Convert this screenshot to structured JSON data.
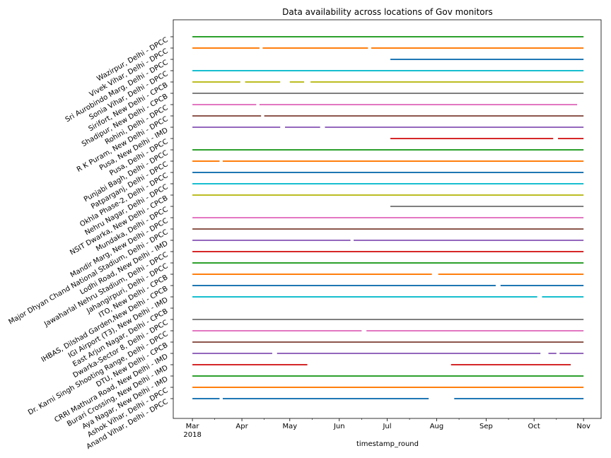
{
  "chart_data": {
    "type": "scatter",
    "title": "Data availability across locations of Gov monitors",
    "xlabel": "timestamp_round",
    "ylabel": "",
    "x_ticks": [
      {
        "date": "2018-03-01",
        "label": "Mar",
        "sublabel": "2018"
      },
      {
        "date": "2018-04-01",
        "label": "Apr",
        "sublabel": ""
      },
      {
        "date": "2018-05-01",
        "label": "May",
        "sublabel": ""
      },
      {
        "date": "2018-06-01",
        "label": "Jun",
        "sublabel": ""
      },
      {
        "date": "2018-07-01",
        "label": "Jul",
        "sublabel": ""
      },
      {
        "date": "2018-08-01",
        "label": "Aug",
        "sublabel": ""
      },
      {
        "date": "2018-09-01",
        "label": "Sep",
        "sublabel": ""
      },
      {
        "date": "2018-10-01",
        "label": "Oct",
        "sublabel": ""
      },
      {
        "date": "2018-11-01",
        "label": "Nov",
        "sublabel": ""
      }
    ],
    "xlim": [
      "2018-02-17",
      "2018-11-12"
    ],
    "grid": false,
    "series": [
      {
        "name": "Wazirpur, Delhi - DPCC",
        "color": "#2ca02c",
        "segments": [
          [
            "2018-03-01",
            "2018-11-01"
          ]
        ]
      },
      {
        "name": "Vivek Vihar, Delhi - DPCC",
        "color": "#ff7f0e",
        "segments": [
          [
            "2018-03-01",
            "2018-04-12"
          ],
          [
            "2018-04-14",
            "2018-06-19"
          ],
          [
            "2018-06-21",
            "2018-11-01"
          ]
        ]
      },
      {
        "name": "Sri Aurobindo Marg, Delhi - DPCC",
        "color": "#1f77b4",
        "segments": [
          [
            "2018-07-03",
            "2018-11-01"
          ]
        ]
      },
      {
        "name": "Sonia Vihar, Delhi - DPCC",
        "color": "#17becf",
        "segments": [
          [
            "2018-03-01",
            "2018-11-01"
          ]
        ]
      },
      {
        "name": "Sirifort, New Delhi - CPCB",
        "color": "#bcbd22",
        "segments": [
          [
            "2018-03-01",
            "2018-03-31"
          ],
          [
            "2018-04-03",
            "2018-04-25"
          ],
          [
            "2018-05-01",
            "2018-05-10"
          ],
          [
            "2018-05-14",
            "2018-11-01"
          ]
        ]
      },
      {
        "name": "Shadipur, New Delhi - CPCB",
        "color": "#7f7f7f",
        "segments": [
          [
            "2018-03-01",
            "2018-11-01"
          ]
        ]
      },
      {
        "name": "Rohini, Delhi - DPCC",
        "color": "#e377c2",
        "segments": [
          [
            "2018-03-01",
            "2018-04-10"
          ],
          [
            "2018-04-12",
            "2018-10-28"
          ]
        ]
      },
      {
        "name": "R K Puram, New Delhi - DPCC",
        "color": "#8c564b",
        "segments": [
          [
            "2018-03-01",
            "2018-04-13"
          ],
          [
            "2018-04-15",
            "2018-11-01"
          ]
        ]
      },
      {
        "name": "Pusa, New Delhi - IMD",
        "color": "#9467bd",
        "segments": [
          [
            "2018-03-01",
            "2018-04-25"
          ],
          [
            "2018-04-28",
            "2018-05-20"
          ],
          [
            "2018-05-23",
            "2018-11-01"
          ]
        ]
      },
      {
        "name": "Pusa, Delhi - DPCC",
        "color": "#d62728",
        "segments": [
          [
            "2018-07-03",
            "2018-10-13"
          ],
          [
            "2018-10-16",
            "2018-11-01"
          ]
        ]
      },
      {
        "name": "Punjabi Bagh, Delhi - DPCC",
        "color": "#2ca02c",
        "segments": [
          [
            "2018-03-01",
            "2018-11-01"
          ]
        ]
      },
      {
        "name": "Patparganj, Delhi - DPCC",
        "color": "#ff7f0e",
        "segments": [
          [
            "2018-03-01",
            "2018-03-18"
          ],
          [
            "2018-03-20",
            "2018-11-01"
          ]
        ]
      },
      {
        "name": "Okhla Phase-2, Delhi - DPCC",
        "color": "#1f77b4",
        "segments": [
          [
            "2018-03-01",
            "2018-11-01"
          ]
        ]
      },
      {
        "name": "Nehru Nagar, Delhi - DPCC",
        "color": "#17becf",
        "segments": [
          [
            "2018-03-01",
            "2018-11-01"
          ]
        ]
      },
      {
        "name": "NSIT Dwarka, New Delhi - CPCB",
        "color": "#bcbd22",
        "segments": [
          [
            "2018-03-01",
            "2018-11-01"
          ]
        ]
      },
      {
        "name": "Mundaka, Delhi - DPCC",
        "color": "#7f7f7f",
        "segments": [
          [
            "2018-07-03",
            "2018-11-01"
          ]
        ]
      },
      {
        "name": "Mandir Marg, New Delhi - DPCC",
        "color": "#e377c2",
        "segments": [
          [
            "2018-03-01",
            "2018-11-01"
          ]
        ]
      },
      {
        "name": "Major Dhyan Chand National Stadium, Delhi - DPCC",
        "color": "#8c564b",
        "segments": [
          [
            "2018-03-01",
            "2018-11-01"
          ]
        ]
      },
      {
        "name": "Lodhi Road, New Delhi - IMD",
        "color": "#9467bd",
        "segments": [
          [
            "2018-03-01",
            "2018-06-08"
          ],
          [
            "2018-06-10",
            "2018-11-01"
          ]
        ]
      },
      {
        "name": "Jawaharlal Nehru Stadium, Delhi - DPCC",
        "color": "#d62728",
        "segments": [
          [
            "2018-03-01",
            "2018-11-01"
          ]
        ]
      },
      {
        "name": "Jahangirpuri, Delhi - DPCC",
        "color": "#2ca02c",
        "segments": [
          [
            "2018-03-01",
            "2018-11-01"
          ]
        ]
      },
      {
        "name": "ITO, New Delhi - CPCB",
        "color": "#ff7f0e",
        "segments": [
          [
            "2018-03-01",
            "2018-07-29"
          ],
          [
            "2018-08-02",
            "2018-11-01"
          ]
        ]
      },
      {
        "name": "IHBAS, Dilshad Garden,New Delhi - CPCB",
        "color": "#1f77b4",
        "segments": [
          [
            "2018-03-01",
            "2018-09-07"
          ],
          [
            "2018-09-10",
            "2018-11-01"
          ]
        ]
      },
      {
        "name": "IGI Airport (T3), New Delhi - IMD",
        "color": "#17becf",
        "segments": [
          [
            "2018-03-01",
            "2018-10-03"
          ],
          [
            "2018-10-06",
            "2018-11-01"
          ]
        ]
      },
      {
        "name": "East Arjun Nagar, Delhi - CPCB",
        "color": "#bcbd22",
        "segments": []
      },
      {
        "name": "Dwarka-Sector 8, Delhi - DPCC",
        "color": "#7f7f7f",
        "segments": [
          [
            "2018-03-01",
            "2018-11-01"
          ]
        ]
      },
      {
        "name": "Dr. Karni Singh Shooting Range, Delhi - DPCC",
        "color": "#e377c2",
        "segments": [
          [
            "2018-03-01",
            "2018-06-15"
          ],
          [
            "2018-06-18",
            "2018-11-01"
          ]
        ]
      },
      {
        "name": "DTU, New Delhi - CPCB",
        "color": "#8c564b",
        "segments": [
          [
            "2018-03-01",
            "2018-11-01"
          ]
        ]
      },
      {
        "name": "CRRI Mathura Road, New Delhi - IMD",
        "color": "#9467bd",
        "segments": [
          [
            "2018-03-01",
            "2018-04-20"
          ],
          [
            "2018-04-23",
            "2018-10-05"
          ],
          [
            "2018-10-10",
            "2018-10-15"
          ],
          [
            "2018-10-17",
            "2018-11-01"
          ]
        ]
      },
      {
        "name": "Burari Crossing, New Delhi - IMD",
        "color": "#d62728",
        "segments": [
          [
            "2018-03-01",
            "2018-05-12"
          ],
          [
            "2018-08-10",
            "2018-10-24"
          ]
        ]
      },
      {
        "name": "Aya Nagar, New Delhi - IMD",
        "color": "#2ca02c",
        "segments": [
          [
            "2018-03-01",
            "2018-11-01"
          ]
        ]
      },
      {
        "name": "Ashok Vihar, Delhi - DPCC",
        "color": "#ff7f0e",
        "segments": [
          [
            "2018-03-01",
            "2018-11-01"
          ]
        ]
      },
      {
        "name": "Anand Vihar, Delhi - DPCC",
        "color": "#1f77b4",
        "segments": [
          [
            "2018-03-01",
            "2018-03-18"
          ],
          [
            "2018-03-20",
            "2018-07-27"
          ],
          [
            "2018-08-12",
            "2018-11-01"
          ]
        ]
      }
    ]
  }
}
